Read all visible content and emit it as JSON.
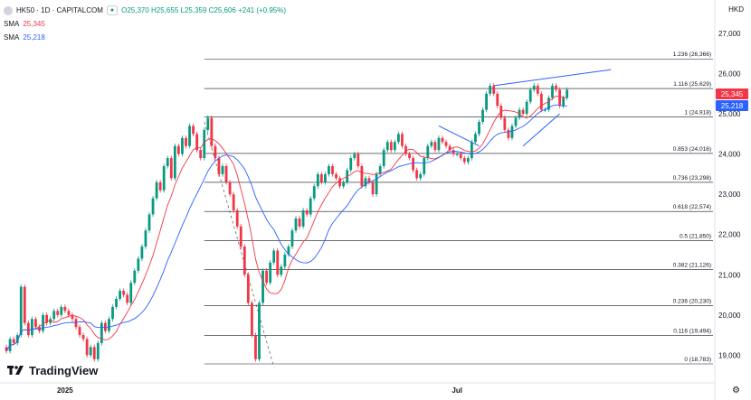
{
  "header": {
    "symbol": "HK50 · 1D · CAPITALCOM",
    "ohlc": "O25,370  H25,655  L25,359  C25,606  +241 (+0.95%)",
    "currency": "HKD",
    "sma1_label": "SMA",
    "sma1_value": "25,345",
    "sma2_label": "SMA",
    "sma2_value": "25,218"
  },
  "branding": {
    "logo_text": "TradingView"
  },
  "colors": {
    "up": "#089981",
    "down": "#f23645",
    "sma_fast": "#f23645",
    "sma_slow": "#2962ff",
    "fib": "#131722",
    "trendline": "#2962ff"
  },
  "chart_data": {
    "type": "candlestick",
    "xlabels": [
      {
        "text": "2025",
        "i": 17
      },
      {
        "text": "Jul",
        "i": 124
      }
    ],
    "ylim": [
      18500,
      27500
    ],
    "yticks": [
      "27,000",
      "26,000",
      "25,000",
      "24,000",
      "23,000",
      "22,000",
      "21,000",
      "20,000",
      "19,000"
    ],
    "price_tags": [
      {
        "text": "25,345",
        "color": "#f23645"
      },
      {
        "text": "25,218",
        "color": "#2962ff"
      }
    ],
    "fib_levels": [
      {
        "label": "1.236 (26,366)",
        "value": 26366,
        "x0": 55
      },
      {
        "label": "1.116 (25,629)",
        "value": 25629,
        "x0": 55
      },
      {
        "label": "1 (24,918)",
        "value": 24918,
        "x0": 55
      },
      {
        "label": "0.853 (24,016)",
        "value": 24016,
        "x0": 55
      },
      {
        "label": "0.736 (23,298)",
        "value": 23298,
        "x0": 55
      },
      {
        "label": "0.618 (22,574)",
        "value": 22574,
        "x0": 55
      },
      {
        "label": "0.5 (21,850)",
        "value": 21850,
        "x0": 55
      },
      {
        "label": "0.382 (21,126)",
        "value": 21126,
        "x0": 55
      },
      {
        "label": "0.236 (20,230)",
        "value": 20230,
        "x0": 55
      },
      {
        "label": "0.116 (19,494)",
        "value": 19494,
        "x0": 55
      },
      {
        "label": "0 (18,783)",
        "value": 18783,
        "x0": 55
      }
    ],
    "trendlines": [
      {
        "i1": 134,
        "v1": 25700,
        "i2": 166,
        "v2": 26100,
        "dash": false
      },
      {
        "i1": 119,
        "v1": 24700,
        "i2": 130,
        "v2": 24200,
        "dash": false
      },
      {
        "i1": 142,
        "v1": 24200,
        "i2": 152,
        "v2": 25000,
        "dash": false
      },
      {
        "i1": 55,
        "v1": 24800,
        "i2": 74,
        "v2": 18700,
        "dash": true
      }
    ]
  }
}
